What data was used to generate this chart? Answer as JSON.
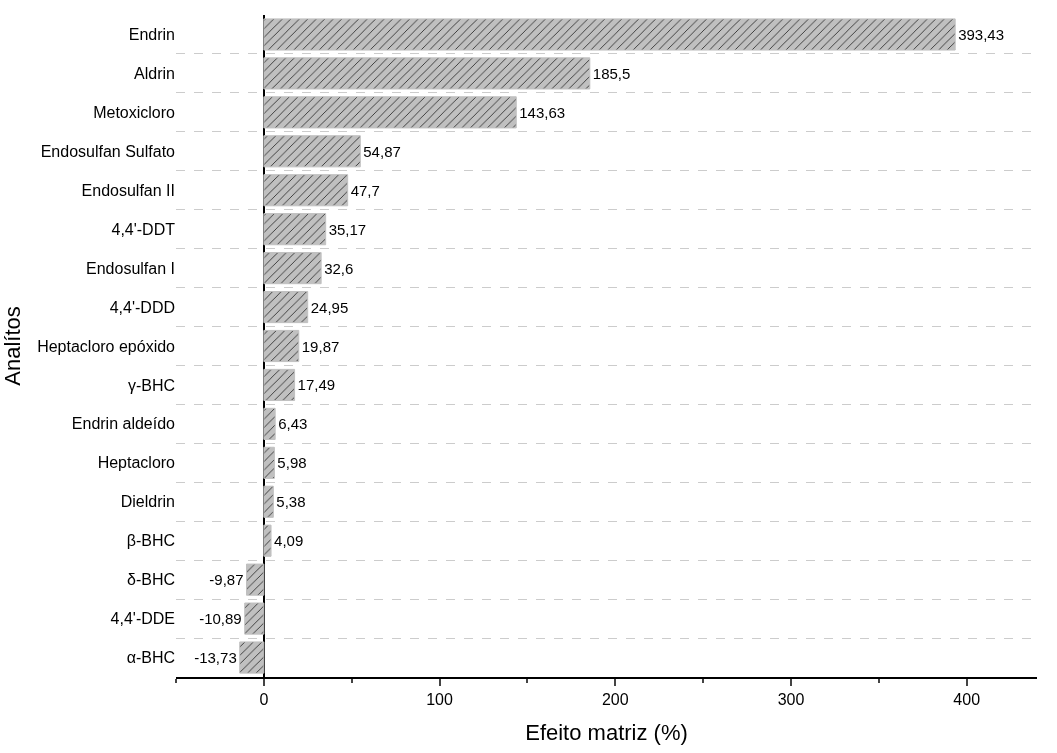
{
  "chart_data": {
    "type": "bar",
    "orientation": "horizontal",
    "xlabel": "Efeito matriz (%)",
    "ylabel": "Analítos",
    "categories": [
      "Endrin",
      "Aldrin",
      "Metoxicloro",
      "Endosulfan Sulfato",
      "Endosulfan II",
      "4,4'-DDT",
      "Endosulfan I",
      "4,4'-DDD",
      "Heptacloro epóxido",
      "γ-BHC",
      "Endrin aldeído",
      "Heptacloro",
      "Dieldrin",
      "β-BHC",
      "δ-BHC",
      "4,4'-DDE",
      "α-BHC"
    ],
    "values": [
      393.43,
      185.5,
      143.63,
      54.87,
      47.7,
      35.17,
      32.6,
      24.95,
      19.87,
      17.49,
      6.43,
      5.98,
      5.38,
      4.09,
      -9.87,
      -10.89,
      -13.73
    ],
    "value_labels": [
      "393,43",
      "185,5",
      "143,63",
      "54,87",
      "47,7",
      "35,17",
      "32,6",
      "24,95",
      "19,87",
      "17,49",
      "6,43",
      "5,98",
      "5,38",
      "4,09",
      "-9,87",
      "-10,89",
      "-13,73"
    ],
    "color": "#c0c0c0",
    "xlim": [
      -50,
      440
    ],
    "xticks": [
      0,
      100,
      200,
      300,
      400
    ],
    "grid": "y",
    "legend": false
  }
}
